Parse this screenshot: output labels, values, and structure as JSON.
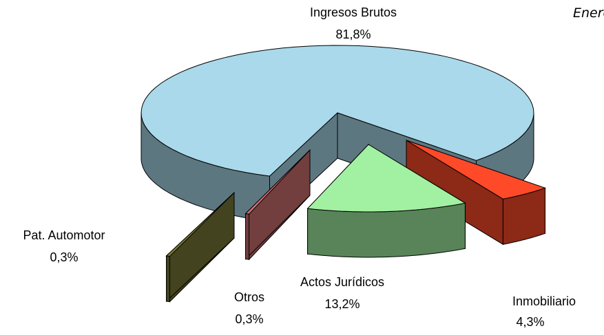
{
  "chart_data": {
    "type": "pie",
    "title": "Enero",
    "categories": [
      "Ingresos Brutos",
      "Actos Jurídicos",
      "Inmobiliario",
      "Otros",
      "Pat. Automotor"
    ],
    "values": [
      81.8,
      13.2,
      4.3,
      0.3,
      0.3
    ],
    "value_labels": [
      "81,8%",
      "13,2%",
      "4,3%",
      "0,3%",
      "0,3%"
    ],
    "colors": [
      "#a9d9ea",
      "#a2f0a2",
      "#ff4a2a",
      "#d07070",
      "#7a7a38"
    ]
  }
}
